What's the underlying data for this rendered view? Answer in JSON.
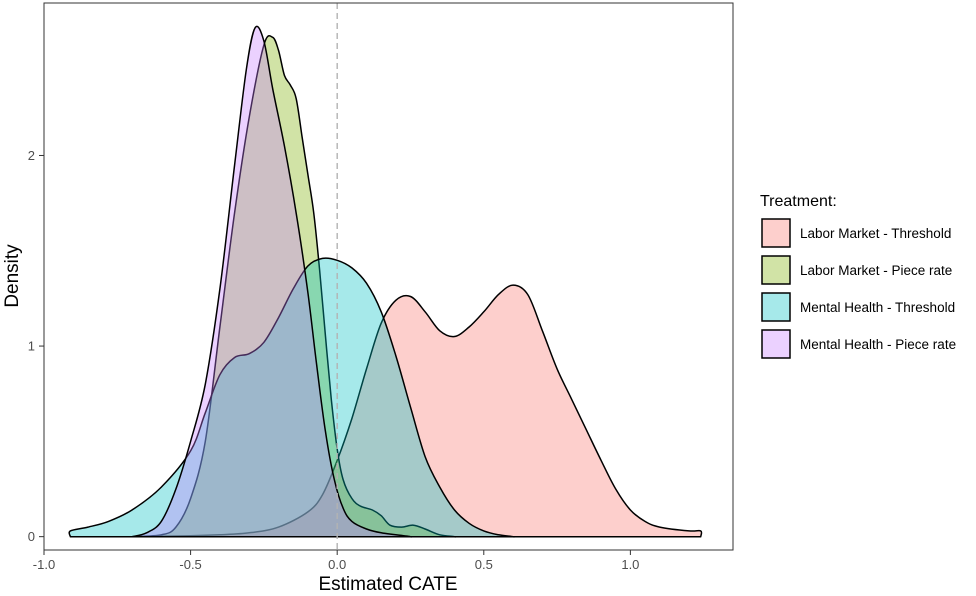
{
  "chart_data": {
    "type": "area",
    "subtype": "density",
    "xlabel": "Estimated CATE",
    "ylabel": "Density",
    "xlim": [
      -1.0,
      1.35
    ],
    "ylim": [
      -0.07,
      2.8
    ],
    "x_ticks": [
      -1.0,
      -0.5,
      0.0,
      0.5,
      1.0
    ],
    "x_tick_labels": [
      "-1.0",
      "-0.5",
      "0.0",
      "0.5",
      "1.0"
    ],
    "y_ticks": [
      0,
      1,
      2
    ],
    "y_tick_labels": [
      "0",
      "1",
      "2"
    ],
    "grid": false,
    "reference_line": {
      "x": 0,
      "style": "dashed",
      "color": "#b3b3b3"
    },
    "legend": {
      "title": "Treatment:",
      "placement": "right"
    },
    "series": [
      {
        "name": "Labor Market - Threshold",
        "color": "#F8766D",
        "points": [
          [
            -0.67,
            0
          ],
          [
            -0.5,
            0.005
          ],
          [
            -0.4,
            0.01
          ],
          [
            -0.3,
            0.02
          ],
          [
            -0.2,
            0.05
          ],
          [
            -0.1,
            0.13
          ],
          [
            -0.05,
            0.22
          ],
          [
            0.0,
            0.4
          ],
          [
            0.05,
            0.62
          ],
          [
            0.1,
            0.88
          ],
          [
            0.15,
            1.12
          ],
          [
            0.2,
            1.24
          ],
          [
            0.25,
            1.26
          ],
          [
            0.3,
            1.18
          ],
          [
            0.35,
            1.08
          ],
          [
            0.4,
            1.05
          ],
          [
            0.45,
            1.1
          ],
          [
            0.5,
            1.18
          ],
          [
            0.55,
            1.27
          ],
          [
            0.6,
            1.32
          ],
          [
            0.65,
            1.27
          ],
          [
            0.7,
            1.08
          ],
          [
            0.75,
            0.88
          ],
          [
            0.8,
            0.72
          ],
          [
            0.85,
            0.56
          ],
          [
            0.9,
            0.4
          ],
          [
            0.95,
            0.25
          ],
          [
            1.0,
            0.14
          ],
          [
            1.05,
            0.08
          ],
          [
            1.1,
            0.05
          ],
          [
            1.2,
            0.03
          ],
          [
            1.24,
            0.03
          ],
          [
            1.24,
            0
          ]
        ]
      },
      {
        "name": "Labor Market - Piece rate",
        "color": "#7CAE00",
        "points": [
          [
            -0.7,
            0
          ],
          [
            -0.6,
            0.01
          ],
          [
            -0.55,
            0.05
          ],
          [
            -0.5,
            0.2
          ],
          [
            -0.45,
            0.5
          ],
          [
            -0.4,
            1.1
          ],
          [
            -0.35,
            1.7
          ],
          [
            -0.3,
            2.2
          ],
          [
            -0.25,
            2.58
          ],
          [
            -0.22,
            2.62
          ],
          [
            -0.2,
            2.55
          ],
          [
            -0.18,
            2.42
          ],
          [
            -0.16,
            2.37
          ],
          [
            -0.14,
            2.3
          ],
          [
            -0.12,
            2.1
          ],
          [
            -0.1,
            1.9
          ],
          [
            -0.08,
            1.7
          ],
          [
            -0.06,
            1.4
          ],
          [
            -0.04,
            1.05
          ],
          [
            -0.02,
            0.72
          ],
          [
            0.0,
            0.46
          ],
          [
            0.02,
            0.3
          ],
          [
            0.05,
            0.2
          ],
          [
            0.08,
            0.16
          ],
          [
            0.12,
            0.14
          ],
          [
            0.15,
            0.11
          ],
          [
            0.18,
            0.06
          ],
          [
            0.22,
            0.05
          ],
          [
            0.26,
            0.06
          ],
          [
            0.3,
            0.04
          ],
          [
            0.35,
            0.01
          ],
          [
            0.4,
            0
          ],
          [
            0.4,
            0
          ]
        ]
      },
      {
        "name": "Mental Health - Threshold",
        "color": "#00BFC4",
        "points": [
          [
            -0.91,
            0
          ],
          [
            -0.91,
            0.03
          ],
          [
            -0.85,
            0.05
          ],
          [
            -0.78,
            0.08
          ],
          [
            -0.7,
            0.14
          ],
          [
            -0.6,
            0.26
          ],
          [
            -0.5,
            0.45
          ],
          [
            -0.45,
            0.65
          ],
          [
            -0.4,
            0.85
          ],
          [
            -0.35,
            0.94
          ],
          [
            -0.3,
            0.96
          ],
          [
            -0.25,
            1.02
          ],
          [
            -0.2,
            1.15
          ],
          [
            -0.15,
            1.3
          ],
          [
            -0.1,
            1.42
          ],
          [
            -0.05,
            1.46
          ],
          [
            0.0,
            1.45
          ],
          [
            0.05,
            1.41
          ],
          [
            0.1,
            1.33
          ],
          [
            0.15,
            1.18
          ],
          [
            0.2,
            0.95
          ],
          [
            0.25,
            0.68
          ],
          [
            0.3,
            0.42
          ],
          [
            0.35,
            0.26
          ],
          [
            0.4,
            0.14
          ],
          [
            0.45,
            0.07
          ],
          [
            0.5,
            0.03
          ],
          [
            0.55,
            0.01
          ],
          [
            0.6,
            0
          ],
          [
            0.6,
            0
          ]
        ]
      },
      {
        "name": "Mental Health - Piece rate",
        "color": "#C77CFF",
        "points": [
          [
            -0.7,
            0
          ],
          [
            -0.65,
            0.02
          ],
          [
            -0.6,
            0.08
          ],
          [
            -0.55,
            0.25
          ],
          [
            -0.5,
            0.5
          ],
          [
            -0.45,
            0.8
          ],
          [
            -0.4,
            1.3
          ],
          [
            -0.35,
            1.95
          ],
          [
            -0.31,
            2.45
          ],
          [
            -0.28,
            2.67
          ],
          [
            -0.25,
            2.6
          ],
          [
            -0.22,
            2.35
          ],
          [
            -0.18,
            2.05
          ],
          [
            -0.14,
            1.7
          ],
          [
            -0.1,
            1.28
          ],
          [
            -0.07,
            0.9
          ],
          [
            -0.04,
            0.55
          ],
          [
            -0.01,
            0.3
          ],
          [
            0.02,
            0.15
          ],
          [
            0.05,
            0.08
          ],
          [
            0.1,
            0.04
          ],
          [
            0.15,
            0.02
          ],
          [
            0.2,
            0.01
          ],
          [
            0.25,
            0
          ],
          [
            0.25,
            0
          ]
        ]
      }
    ]
  }
}
